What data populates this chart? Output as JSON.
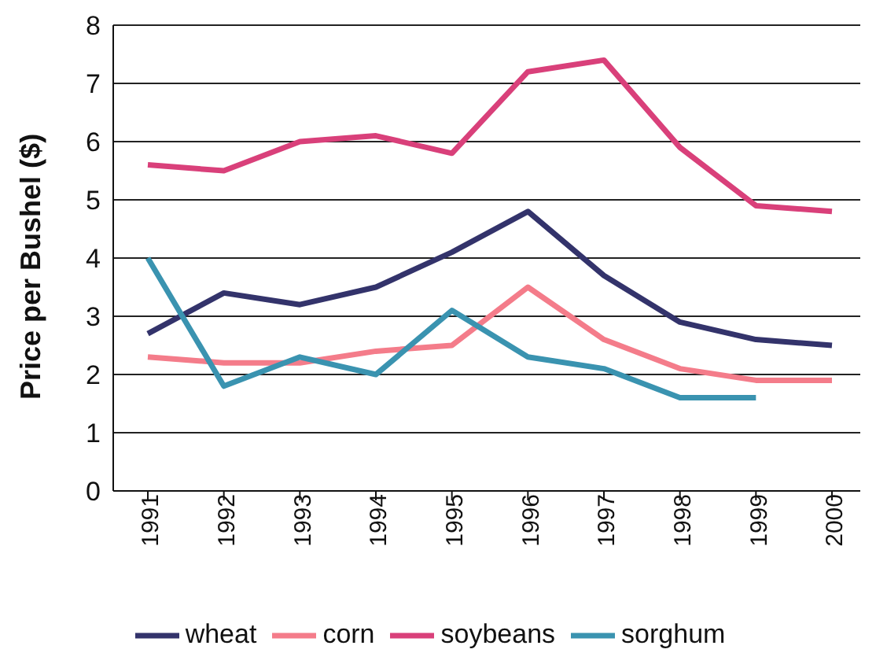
{
  "chart_data": {
    "type": "line",
    "ylabel": "Price  per Bushel ($)",
    "categories": [
      "1991",
      "1992",
      "1993",
      "1994",
      "1995",
      "1996",
      "1997",
      "1998",
      "1999",
      "2000"
    ],
    "series": [
      {
        "name": "wheat",
        "color": "#33336b",
        "values": [
          2.7,
          3.4,
          3.2,
          3.5,
          4.1,
          4.8,
          3.7,
          2.9,
          2.6,
          2.5
        ]
      },
      {
        "name": "corn",
        "color": "#f47c8a",
        "values": [
          2.3,
          2.2,
          2.2,
          2.4,
          2.5,
          3.5,
          2.6,
          2.1,
          1.9,
          1.9
        ]
      },
      {
        "name": "soybeans",
        "color": "#d9407a",
        "values": [
          5.6,
          5.5,
          6.0,
          6.1,
          5.8,
          7.2,
          7.4,
          5.9,
          4.9,
          4.8
        ]
      },
      {
        "name": "sorghum",
        "color": "#3a93b0",
        "values": [
          4.0,
          1.8,
          2.3,
          2.0,
          3.1,
          2.3,
          2.1,
          1.6,
          1.6,
          null
        ]
      }
    ],
    "ylim": [
      0,
      8
    ],
    "yticks": [
      0,
      1,
      2,
      3,
      4,
      5,
      6,
      7,
      8
    ],
    "grid": "y",
    "legend": "bottom",
    "marker": "none",
    "line_style": "solid"
  }
}
